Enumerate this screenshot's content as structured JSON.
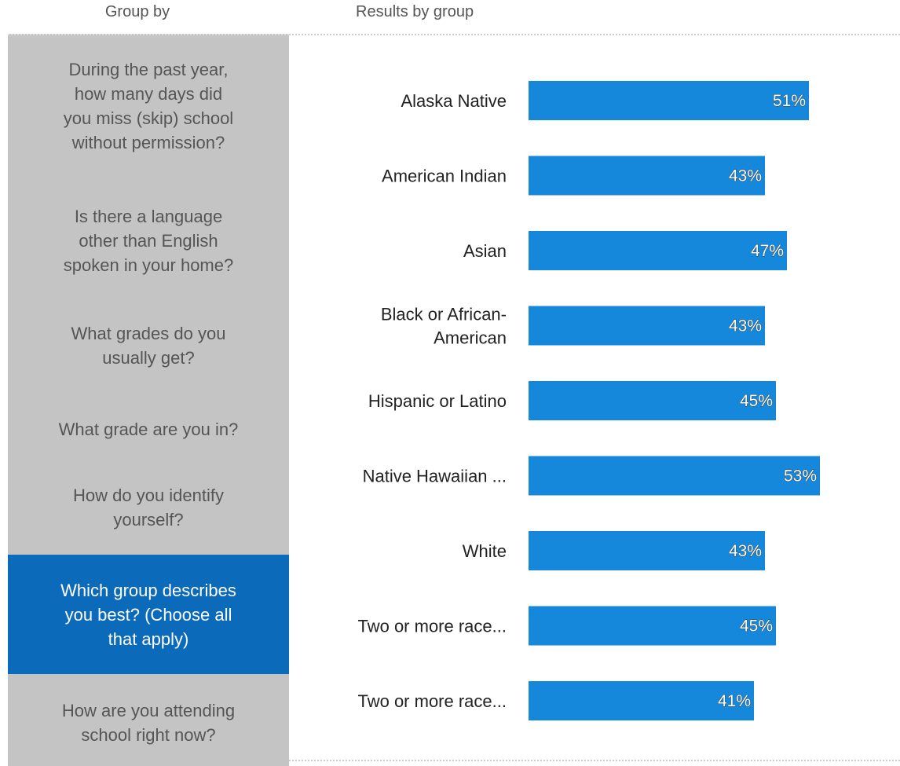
{
  "header": {
    "group_by": "Group by",
    "results_by_group": "Results by group"
  },
  "sidebar": {
    "items": [
      {
        "lines": [
          "During the past year,",
          "how many days did",
          "you miss (skip) school",
          "without permission?"
        ],
        "active": false
      },
      {
        "lines": [
          "Is there a language",
          "other than English",
          "spoken in your home?"
        ],
        "active": false
      },
      {
        "lines": [
          "What grades do you",
          "usually get?"
        ],
        "active": false
      },
      {
        "lines": [
          "What grade are you in?"
        ],
        "active": false
      },
      {
        "lines": [
          "How do you identify",
          "yourself?"
        ],
        "active": false
      },
      {
        "lines": [
          "Which group describes",
          "you best? (Choose all",
          "that apply)"
        ],
        "active": true
      },
      {
        "lines": [
          "How are you attending",
          "school right now?"
        ],
        "active": false
      }
    ]
  },
  "colors": {
    "bar": "#1588dc",
    "active_item": "#0b6ab9",
    "sidebar_bg": "#c4c4c4"
  },
  "chart_data": {
    "type": "bar",
    "orientation": "horizontal",
    "categories": [
      [
        "Alaska Native"
      ],
      [
        "American Indian"
      ],
      [
        "Asian"
      ],
      [
        "Black or African-",
        "American"
      ],
      [
        "Hispanic or Latino"
      ],
      [
        "Native Hawaiian ..."
      ],
      [
        "White"
      ],
      [
        "Two or more race..."
      ],
      [
        "Two or more race..."
      ]
    ],
    "values": [
      51,
      43,
      47,
      43,
      45,
      53,
      43,
      45,
      41
    ],
    "value_labels": [
      "51%",
      "43%",
      "47%",
      "43%",
      "45%",
      "53%",
      "43%",
      "45%",
      "41%"
    ],
    "unit": "%",
    "title": "",
    "xlabel": "",
    "ylabel": ""
  }
}
